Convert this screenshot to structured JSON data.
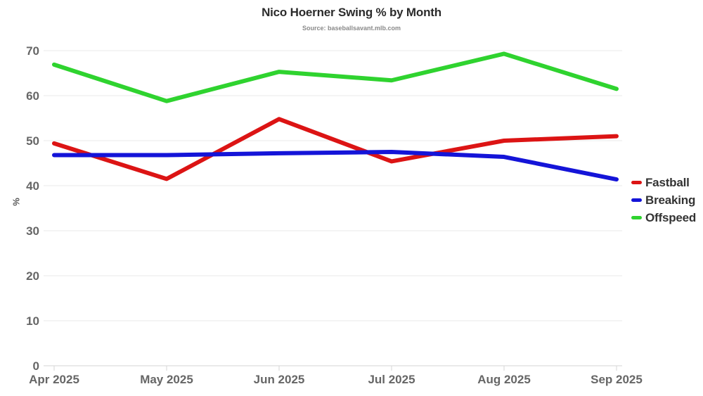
{
  "header": {
    "title": "Nico Hoerner Swing % by Month",
    "subtitle": "Source: baseballsavant.mlb.com"
  },
  "chart_data": {
    "type": "line",
    "title": "Nico Hoerner Swing % by Month",
    "subtitle": "Source: baseballsavant.mlb.com",
    "xlabel": "",
    "ylabel": "%",
    "categories": [
      "Apr 2025",
      "May 2025",
      "Jun 2025",
      "Jul 2025",
      "Aug 2025",
      "Sep 2025"
    ],
    "series": [
      {
        "name": "Fastball",
        "color": "#dc1414",
        "values": [
          49.4,
          41.5,
          54.8,
          45.4,
          50.0,
          51.0
        ]
      },
      {
        "name": "Breaking",
        "color": "#1414d8",
        "values": [
          46.8,
          46.8,
          47.2,
          47.5,
          46.4,
          41.4
        ]
      },
      {
        "name": "Offspeed",
        "color": "#2fd32f",
        "values": [
          66.9,
          58.8,
          65.3,
          63.4,
          69.3,
          61.5
        ]
      }
    ],
    "ylim": [
      0,
      70
    ],
    "yticks": [
      0,
      10,
      20,
      30,
      40,
      50,
      60,
      70
    ],
    "grid": "horizontal-only",
    "legend_position": "right"
  },
  "style": {
    "gridline_color": "#e9e9e9",
    "axisline_color": "#d6d6d6",
    "tick_label_color": "#666666",
    "line_width": 6
  }
}
